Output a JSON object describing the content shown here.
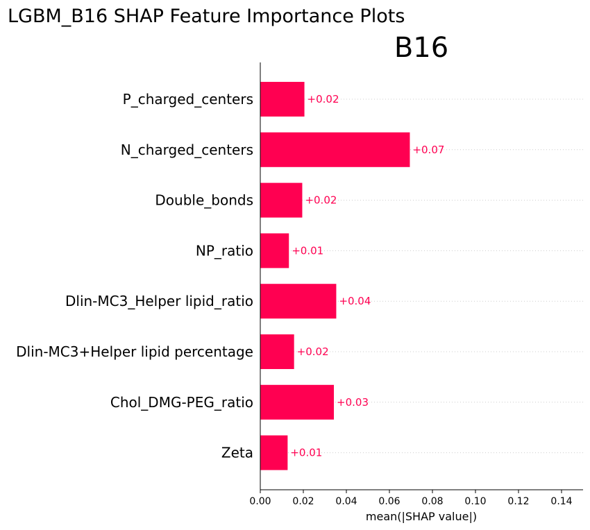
{
  "suptitle": "LGBM_B16 SHAP Feature Importance Plots",
  "chart_data": {
    "type": "bar",
    "orientation": "horizontal",
    "title": "B16",
    "xlabel": "mean(|SHAP value|)",
    "ylabel": "",
    "xlim": [
      0,
      0.15
    ],
    "xticks": [
      "0.00",
      "0.02",
      "0.04",
      "0.06",
      "0.08",
      "0.10",
      "0.12",
      "0.14"
    ],
    "xtick_values": [
      0,
      0.02,
      0.04,
      0.06,
      0.08,
      0.1,
      0.12,
      0.14
    ],
    "categories": [
      "P_charged_centers",
      "N_charged_centers",
      "Double_bonds",
      "NP_ratio",
      "Dlin-MC3_Helper lipid_ratio",
      "Dlin-MC3+Helper lipid percentage",
      "Chol_DMG-PEG_ratio",
      "Zeta"
    ],
    "values": [
      0.0205,
      0.0695,
      0.0195,
      0.0133,
      0.0353,
      0.0157,
      0.0342,
      0.0127
    ],
    "value_labels": [
      "+0.02",
      "+0.07",
      "+0.02",
      "+0.01",
      "+0.04",
      "+0.02",
      "+0.03",
      "+0.01"
    ],
    "bar_color": "#ff0051",
    "grid": "dotted horizontal guides per row",
    "legend": "none"
  }
}
